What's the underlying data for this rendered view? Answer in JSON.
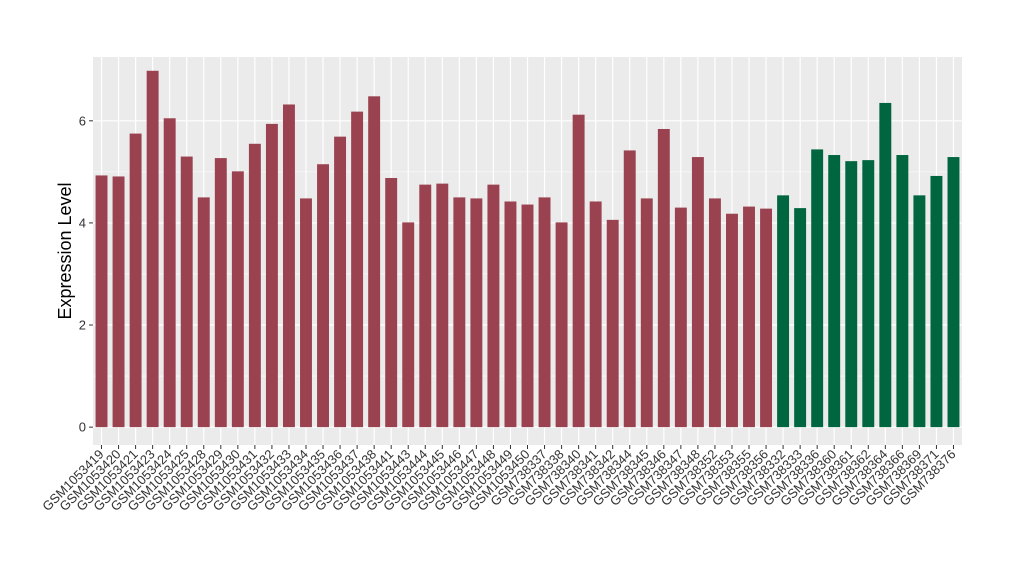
{
  "chart_data": {
    "type": "bar",
    "title": "",
    "xlabel": "",
    "ylabel": "Expression Level",
    "ylim": [
      -0.35,
      7.25
    ],
    "yticks": [
      0,
      2,
      4,
      6
    ],
    "grid": true,
    "legend": "none",
    "colors": {
      "group1": "#9b4250",
      "group2": "#00663f",
      "panel": "#ebebeb",
      "grid": "#ffffff"
    },
    "categories": [
      "GSM1053419",
      "GSM1053420",
      "GSM1053421",
      "GSM1053423",
      "GSM1053424",
      "GSM1053425",
      "GSM1053428",
      "GSM1053429",
      "GSM1053430",
      "GSM1053431",
      "GSM1053432",
      "GSM1053433",
      "GSM1053434",
      "GSM1053435",
      "GSM1053436",
      "GSM1053437",
      "GSM1053438",
      "GSM1053441",
      "GSM1053443",
      "GSM1053444",
      "GSM1053445",
      "GSM1053446",
      "GSM1053447",
      "GSM1053448",
      "GSM1053449",
      "GSM1053450",
      "GSM738337",
      "GSM738338",
      "GSM738340",
      "GSM738341",
      "GSM738342",
      "GSM738344",
      "GSM738345",
      "GSM738346",
      "GSM738347",
      "GSM738348",
      "GSM738352",
      "GSM738353",
      "GSM738355",
      "GSM738356",
      "GSM738332",
      "GSM738333",
      "GSM738336",
      "GSM738360",
      "GSM738361",
      "GSM738362",
      "GSM738364",
      "GSM738366",
      "GSM738369",
      "GSM738371",
      "GSM738376"
    ],
    "values": [
      4.93,
      4.91,
      5.75,
      6.98,
      6.05,
      5.3,
      4.5,
      5.27,
      5.01,
      5.55,
      5.94,
      6.32,
      4.48,
      5.15,
      5.69,
      6.18,
      6.48,
      4.88,
      4.01,
      4.75,
      4.77,
      4.5,
      4.48,
      4.75,
      4.42,
      4.36,
      4.5,
      4.01,
      6.12,
      4.42,
      4.06,
      5.42,
      4.48,
      5.84,
      4.3,
      5.29,
      4.48,
      4.18,
      4.32,
      4.28,
      4.54,
      4.29,
      5.44,
      5.33,
      5.21,
      5.23,
      6.35,
      5.33,
      4.54,
      4.92,
      5.29
    ],
    "groups": [
      1,
      1,
      1,
      1,
      1,
      1,
      1,
      1,
      1,
      1,
      1,
      1,
      1,
      1,
      1,
      1,
      1,
      1,
      1,
      1,
      1,
      1,
      1,
      1,
      1,
      1,
      1,
      1,
      1,
      1,
      1,
      1,
      1,
      1,
      1,
      1,
      1,
      1,
      1,
      1,
      2,
      2,
      2,
      2,
      2,
      2,
      2,
      2,
      2,
      2,
      2
    ]
  }
}
